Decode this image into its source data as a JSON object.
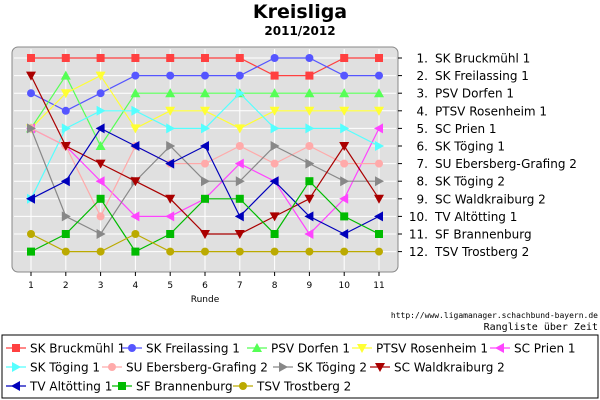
{
  "header": {
    "title": "Kreisliga",
    "subtitle": "2011/2012"
  },
  "footer": {
    "url": "http://www.ligamanager.schachbund-bayern.de",
    "note": "Rangliste über Zeit"
  },
  "chart_data": {
    "type": "line",
    "title": "Kreisliga",
    "subtitle": "2011/2012",
    "xlabel": "Runde",
    "ylabel": "",
    "x": [
      1,
      2,
      3,
      4,
      5,
      6,
      7,
      8,
      9,
      10,
      11
    ],
    "ylim": [
      1,
      12
    ],
    "y_inverted": true,
    "grid": true,
    "legend_position": "bottom",
    "right_labels": [
      "1. SK Bruckmühl 1",
      "2. SK Freilassing 1",
      "3. PSV Dorfen 1",
      "4. PTSV Rosenheim 1",
      "5. SC Prien 1",
      "6. SK Töging 1",
      "7. SU Ebersberg-Grafing 2",
      "8. SK Töging 2",
      "9. SC Waldkraiburg 2",
      "10. TV Altötting 1",
      "11. SF Brannenburg",
      "12. TSV Trostberg 2"
    ],
    "series": [
      {
        "name": "SK Bruckmühl 1",
        "color": "#ff4040",
        "marker": "square",
        "values": [
          1,
          1,
          1,
          1,
          1,
          1,
          1,
          2,
          2,
          1,
          1
        ]
      },
      {
        "name": "SK Freilassing 1",
        "color": "#5555ff",
        "marker": "circle",
        "values": [
          3,
          4,
          3,
          2,
          2,
          2,
          2,
          1,
          1,
          2,
          2
        ]
      },
      {
        "name": "PSV Dorfen 1",
        "color": "#55ff55",
        "marker": "triangle-up",
        "values": [
          5,
          2,
          6,
          3,
          3,
          3,
          3,
          3,
          3,
          3,
          3
        ]
      },
      {
        "name": "PTSV Rosenheim 1",
        "color": "#ffff33",
        "marker": "triangle-down",
        "values": [
          5,
          3,
          2,
          5,
          4,
          4,
          5,
          4,
          4,
          4,
          4
        ]
      },
      {
        "name": "SC Prien 1",
        "color": "#ff44ff",
        "marker": "triangle-left",
        "values": [
          5,
          6,
          8,
          10,
          10,
          9,
          7,
          8,
          11,
          9,
          5
        ]
      },
      {
        "name": "SK Töging 1",
        "color": "#55ffff",
        "marker": "triangle-right",
        "values": [
          9,
          5,
          4,
          4,
          5,
          5,
          3,
          5,
          5,
          5,
          6
        ]
      },
      {
        "name": "SU Ebersberg-Grafing 2",
        "color": "#ffaaaa",
        "marker": "circle",
        "values": [
          5,
          6,
          10,
          6,
          7,
          7,
          6,
          7,
          6,
          7,
          7
        ]
      },
      {
        "name": "SK Töging 2",
        "color": "#888888",
        "marker": "triangle-right",
        "values": [
          5,
          10,
          11,
          8,
          6,
          8,
          8,
          6,
          7,
          8,
          8
        ]
      },
      {
        "name": "SC Waldkraiburg 2",
        "color": "#aa0000",
        "marker": "triangle-down",
        "values": [
          2,
          6,
          7,
          8,
          9,
          11,
          11,
          10,
          9,
          6,
          9
        ]
      },
      {
        "name": "TV Altötting 1",
        "color": "#0000bb",
        "marker": "triangle-left",
        "values": [
          9,
          8,
          5,
          6,
          7,
          6,
          10,
          8,
          10,
          11,
          10
        ]
      },
      {
        "name": "SF Brannenburg",
        "color": "#00bb00",
        "marker": "square",
        "values": [
          12,
          11,
          9,
          12,
          11,
          9,
          9,
          11,
          8,
          10,
          11
        ]
      },
      {
        "name": "TSV Trostberg 2",
        "color": "#bbaa00",
        "marker": "circle",
        "values": [
          11,
          12,
          12,
          11,
          12,
          12,
          12,
          12,
          12,
          12,
          12
        ]
      }
    ]
  }
}
